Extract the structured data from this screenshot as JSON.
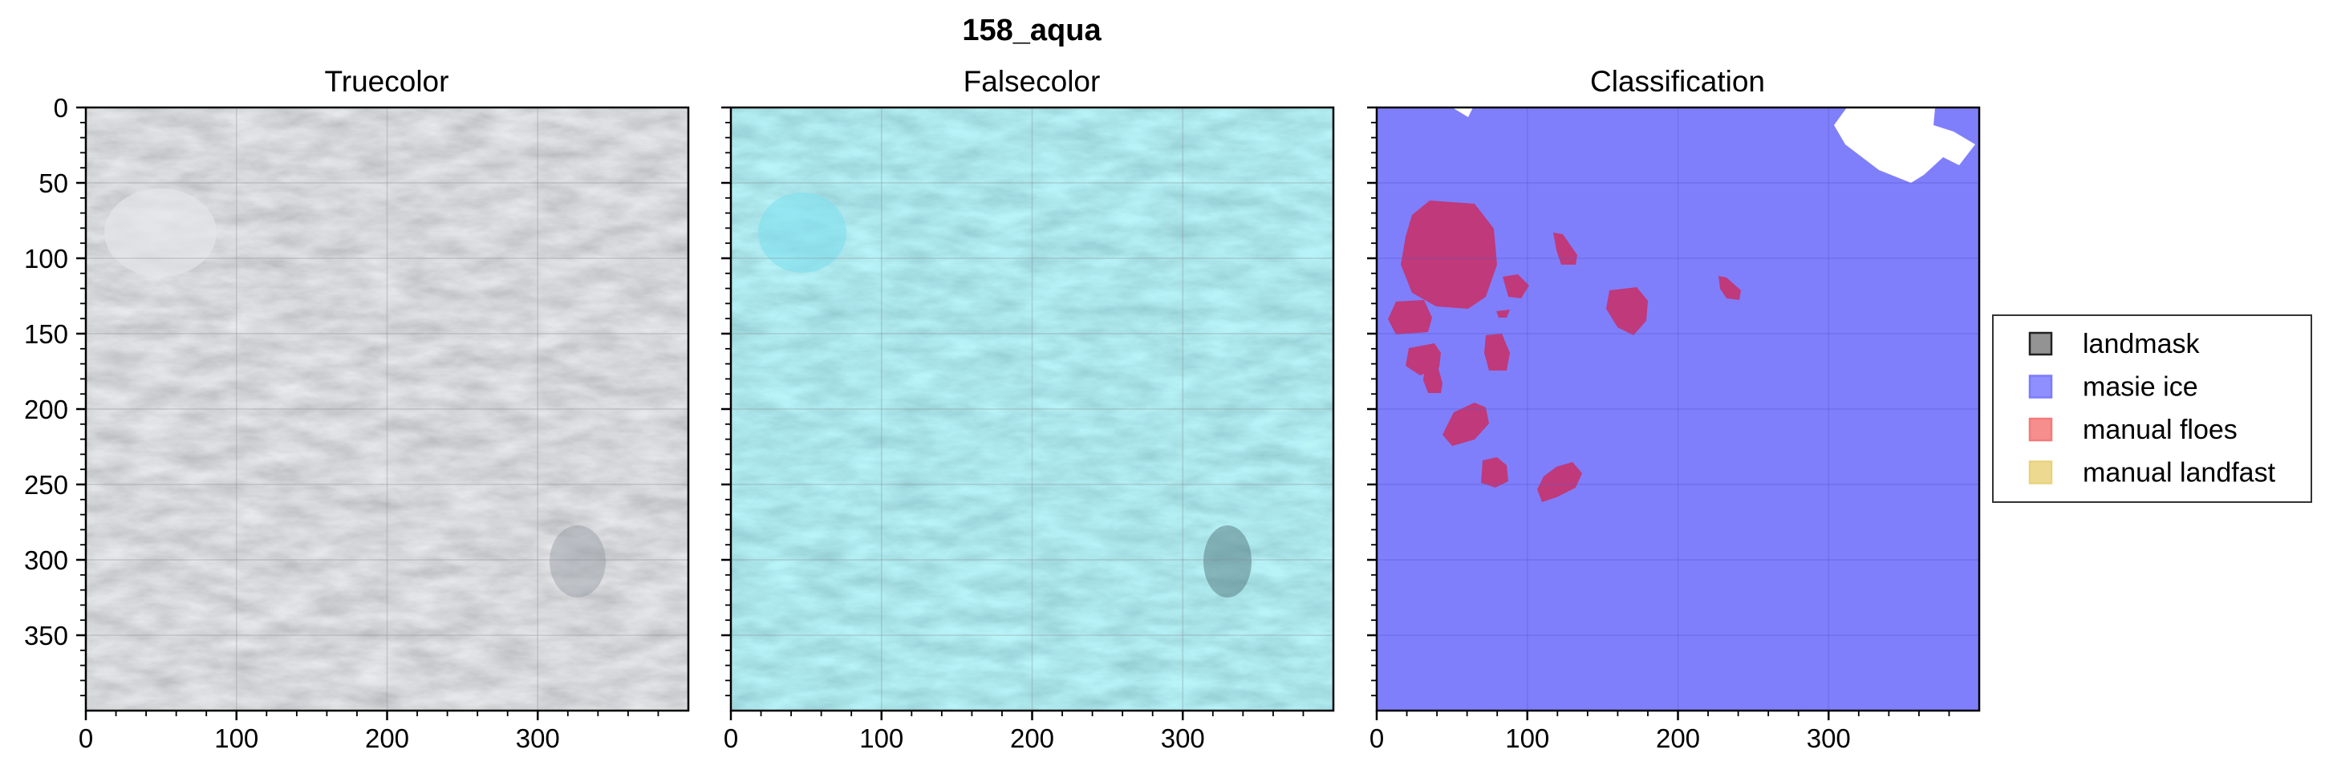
{
  "figure": {
    "title": "158_aqua"
  },
  "panels": [
    {
      "title": "Truecolor",
      "kind": "truecolor"
    },
    {
      "title": "Falsecolor",
      "kind": "falsecolor"
    },
    {
      "title": "Classification",
      "kind": "classification"
    }
  ],
  "axes": {
    "x_ticks": [
      "0",
      "100",
      "200",
      "300"
    ],
    "y_ticks": [
      "0",
      "50",
      "100",
      "150",
      "200",
      "250",
      "300",
      "350"
    ],
    "xlim": [
      0,
      400
    ],
    "ylim": [
      400,
      0
    ],
    "grid": true
  },
  "legend": {
    "placement": "right",
    "items": [
      {
        "label": "landmask",
        "color": "#808080"
      },
      {
        "label": "masie ice",
        "color": "#7b7bff"
      },
      {
        "label": "manual floes",
        "color": "#f47a7a"
      },
      {
        "label": "manual landfast",
        "color": "#ead27c"
      }
    ]
  },
  "colors": {
    "masie_ice": "#7f7ffc",
    "floe": "#c0397a",
    "landmask_gap": "#ffffff"
  }
}
